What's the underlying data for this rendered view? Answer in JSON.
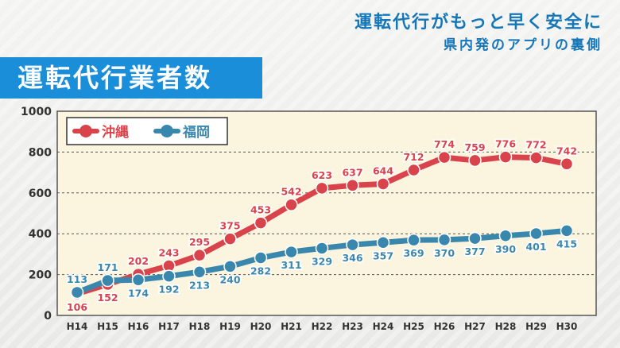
{
  "headline": {
    "line1": "運転代行がもっと早く安全に",
    "line2": "県内発のアプリの裏側"
  },
  "colors": {
    "okinawa": "#d9434b",
    "fukuoka": "#3a87ad",
    "plot_bg": "#fbf5df",
    "title_bg": "#1a8ed8"
  },
  "chart_data": {
    "type": "line",
    "title": "運転代行業者数",
    "categories": [
      "H14",
      "H15",
      "H16",
      "H17",
      "H18",
      "H19",
      "H20",
      "H21",
      "H22",
      "H23",
      "H24",
      "H25",
      "H26",
      "H27",
      "H28",
      "H29",
      "H30"
    ],
    "series": [
      {
        "name": "沖縄",
        "values": [
          106,
          152,
          202,
          243,
          295,
          375,
          453,
          542,
          623,
          637,
          644,
          712,
          774,
          759,
          776,
          772,
          742
        ]
      },
      {
        "name": "福岡",
        "values": [
          113,
          171,
          174,
          192,
          213,
          240,
          282,
          311,
          329,
          346,
          357,
          369,
          370,
          377,
          390,
          401,
          415
        ]
      }
    ],
    "yticks": [
      0,
      200,
      400,
      600,
      800,
      1000
    ],
    "ylim": [
      0,
      1000
    ],
    "grid": true,
    "legend_position": "top-left"
  }
}
